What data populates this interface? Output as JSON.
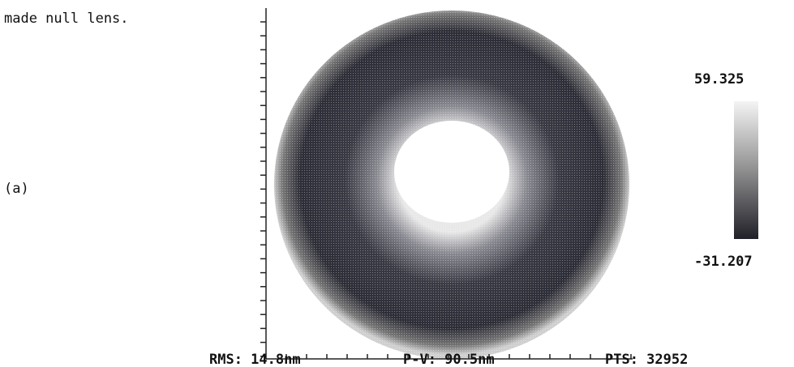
{
  "caption_fragment": "made null lens.",
  "panel_label": "(a)",
  "scale": {
    "max": "59.325",
    "min": "-31.207"
  },
  "stats": {
    "rms": "RMS: 14.8nm",
    "pv": "P-V: 90.5nm",
    "pts": "PTS: 32952"
  }
}
